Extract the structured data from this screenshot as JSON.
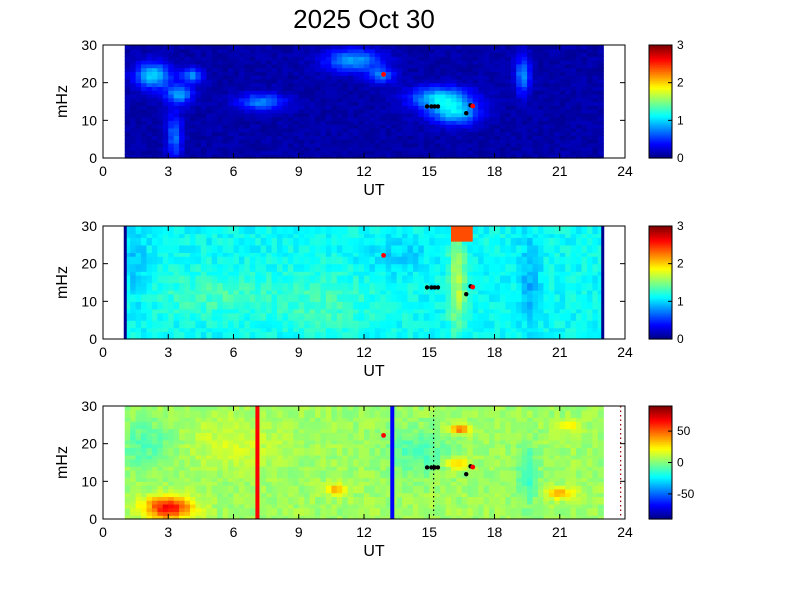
{
  "title": "2025 Oct 30",
  "chart_data": [
    {
      "type": "heatmap",
      "xlabel": "UT",
      "ylabel": "mHz",
      "xlim": [
        0,
        24
      ],
      "ylim": [
        0,
        30
      ],
      "xticks": [
        "0",
        "3",
        "6",
        "9",
        "12",
        "15",
        "18",
        "21",
        "24"
      ],
      "yticks": [
        "0",
        "10",
        "20",
        "30"
      ],
      "data_time_range": [
        1,
        23
      ],
      "colorbar": {
        "range": [
          0,
          3
        ],
        "ticks": [
          "0",
          "1",
          "2",
          "3"
        ]
      },
      "markers_red": [
        {
          "x": 12.9,
          "y": 22.2
        },
        {
          "x": 17.0,
          "y": 13.8
        }
      ],
      "markers_black": [
        {
          "x": 14.9,
          "y": 13.7
        },
        {
          "x": 15.1,
          "y": 13.7
        },
        {
          "x": 15.25,
          "y": 13.7
        },
        {
          "x": 15.4,
          "y": 13.7
        },
        {
          "x": 16.7,
          "y": 11.9
        },
        {
          "x": 16.9,
          "y": 14.0
        }
      ]
    },
    {
      "type": "heatmap",
      "xlabel": "UT",
      "ylabel": "mHz",
      "xlim": [
        0,
        24
      ],
      "ylim": [
        0,
        30
      ],
      "xticks": [
        "0",
        "3",
        "6",
        "9",
        "12",
        "15",
        "18",
        "21",
        "24"
      ],
      "yticks": [
        "0",
        "10",
        "20",
        "30"
      ],
      "data_time_range": [
        1,
        23
      ],
      "colorbar": {
        "range": [
          0,
          3
        ],
        "ticks": [
          "0",
          "1",
          "2",
          "3"
        ]
      },
      "markers_red": [
        {
          "x": 12.9,
          "y": 22.2
        },
        {
          "x": 17.0,
          "y": 13.8
        }
      ],
      "markers_black": [
        {
          "x": 14.9,
          "y": 13.7
        },
        {
          "x": 15.1,
          "y": 13.7
        },
        {
          "x": 15.25,
          "y": 13.7
        },
        {
          "x": 15.4,
          "y": 13.7
        },
        {
          "x": 16.7,
          "y": 11.9
        },
        {
          "x": 16.9,
          "y": 14.0
        }
      ]
    },
    {
      "type": "heatmap",
      "xlabel": "UT",
      "ylabel": "mHz",
      "xlim": [
        0,
        24
      ],
      "ylim": [
        0,
        30
      ],
      "xticks": [
        "0",
        "3",
        "6",
        "9",
        "12",
        "15",
        "18",
        "21",
        "24"
      ],
      "yticks": [
        "0",
        "10",
        "20",
        "30"
      ],
      "data_time_range": [
        1,
        23
      ],
      "colorbar": {
        "range": [
          -90,
          90
        ],
        "ticks": [
          "50",
          "0",
          "-50"
        ]
      },
      "vlines": [
        {
          "x": 7.1,
          "color": "#ff0000"
        },
        {
          "x": 13.3,
          "color": "#0000ff"
        }
      ],
      "dotted_vlines": [
        {
          "x": 15.2,
          "color": "#000000"
        },
        {
          "x": 23.8,
          "color": "#990000"
        }
      ],
      "markers_red": [
        {
          "x": 12.9,
          "y": 22.2
        },
        {
          "x": 17.0,
          "y": 13.8
        }
      ],
      "markers_black": [
        {
          "x": 14.9,
          "y": 13.7
        },
        {
          "x": 15.1,
          "y": 13.7
        },
        {
          "x": 15.25,
          "y": 13.7
        },
        {
          "x": 15.4,
          "y": 13.7
        },
        {
          "x": 16.7,
          "y": 11.9
        },
        {
          "x": 16.9,
          "y": 14.0
        }
      ]
    }
  ]
}
